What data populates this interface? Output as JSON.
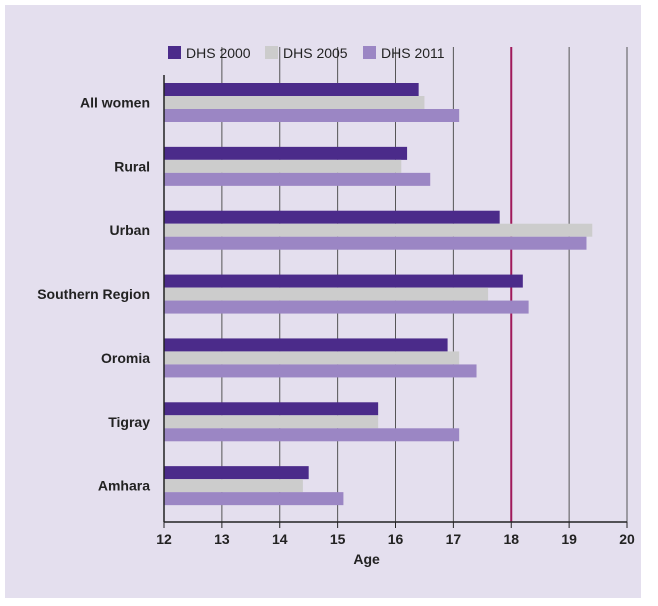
{
  "chart_data": {
    "type": "bar",
    "orientation": "horizontal",
    "title": "",
    "xlabel": "Age",
    "ylabel": "",
    "xlim": [
      12,
      20
    ],
    "xticks": [
      12,
      13,
      14,
      15,
      16,
      17,
      18,
      19,
      20
    ],
    "grid": true,
    "legend_position": "top",
    "reference_line": {
      "x": 18,
      "color": "#a0195a"
    },
    "categories": [
      "All women",
      "Rural",
      "Urban",
      "Southern Region",
      "Oromia",
      "Tigray",
      "Amhara"
    ],
    "series": [
      {
        "name": "DHS 2000",
        "color": "#4b2b8a",
        "values": [
          16.4,
          16.2,
          17.8,
          18.2,
          16.9,
          15.7,
          14.5
        ]
      },
      {
        "name": "DHS 2005",
        "color": "#cccccc",
        "values": [
          16.5,
          16.1,
          19.4,
          17.6,
          17.1,
          15.7,
          14.4
        ]
      },
      {
        "name": "DHS 2011",
        "color": "#9b86c4",
        "values": [
          17.1,
          16.6,
          19.3,
          18.3,
          17.4,
          17.1,
          15.1
        ]
      }
    ]
  }
}
